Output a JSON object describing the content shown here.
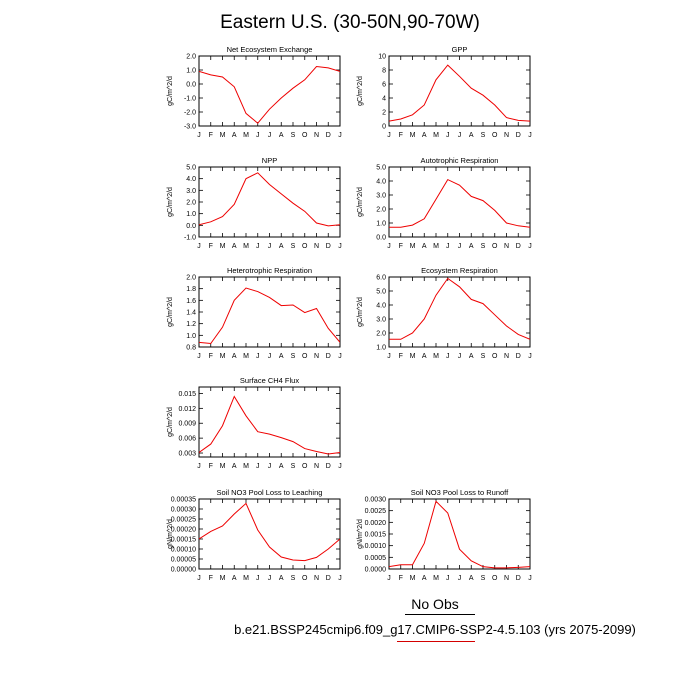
{
  "title": "Eastern U.S. (30-50N,90-70W)",
  "footer": {
    "obs_label": "No Obs",
    "case_label": "b.e21.BSSP245cmip6.f09_g17.CMIP6-SSP2-4.5.103 (yrs 2075-2099)"
  },
  "colors": {
    "series": "#ee0000",
    "axis": "#000000",
    "obs_underline": "#000000",
    "case_underline": "#d40000"
  },
  "chart_data": [
    {
      "type": "line",
      "title": "Net Ecosystem Exchange",
      "ylabel": "gC/m^2/d",
      "categories": [
        "J",
        "F",
        "M",
        "A",
        "M",
        "J",
        "J",
        "A",
        "S",
        "O",
        "N",
        "D",
        "J"
      ],
      "values": [
        0.9,
        0.65,
        0.5,
        -0.2,
        -2.1,
        -2.8,
        -1.8,
        -1.0,
        -0.3,
        0.3,
        1.25,
        1.15,
        0.9
      ],
      "ylim": [
        -3.0,
        2.0
      ],
      "yticks": [
        "-3.0",
        "-2.0",
        "-1.0",
        "0.0",
        "1.0",
        "2.0"
      ]
    },
    {
      "type": "line",
      "title": "GPP",
      "ylabel": "gC/m^2/d",
      "categories": [
        "J",
        "F",
        "M",
        "A",
        "M",
        "J",
        "J",
        "A",
        "S",
        "O",
        "N",
        "D",
        "J"
      ],
      "values": [
        0.7,
        1.0,
        1.6,
        3.0,
        6.6,
        8.7,
        7.1,
        5.4,
        4.4,
        3.0,
        1.2,
        0.8,
        0.7
      ],
      "ylim": [
        0,
        10
      ],
      "yticks": [
        "0",
        "2",
        "4",
        "6",
        "8",
        "10"
      ]
    },
    {
      "type": "line",
      "title": "NPP",
      "ylabel": "gC/m^2/d",
      "categories": [
        "J",
        "F",
        "M",
        "A",
        "M",
        "J",
        "J",
        "A",
        "S",
        "O",
        "N",
        "D",
        "J"
      ],
      "values": [
        0.05,
        0.3,
        0.75,
        1.8,
        4.0,
        4.5,
        3.5,
        2.7,
        1.9,
        1.2,
        0.2,
        -0.05,
        0.05
      ],
      "ylim": [
        -1.0,
        5.0
      ],
      "yticks": [
        "-1.0",
        "0.0",
        "1.0",
        "2.0",
        "3.0",
        "4.0",
        "5.0"
      ]
    },
    {
      "type": "line",
      "title": "Autotrophic Respiration",
      "ylabel": "gC/m^2/d",
      "categories": [
        "J",
        "F",
        "M",
        "A",
        "M",
        "J",
        "J",
        "A",
        "S",
        "O",
        "N",
        "D",
        "J"
      ],
      "values": [
        0.7,
        0.7,
        0.85,
        1.3,
        2.7,
        4.1,
        3.7,
        2.9,
        2.6,
        1.9,
        1.0,
        0.8,
        0.7
      ],
      "ylim": [
        0.0,
        5.0
      ],
      "yticks": [
        "0.0",
        "1.0",
        "2.0",
        "3.0",
        "4.0",
        "5.0"
      ]
    },
    {
      "type": "line",
      "title": "Heterotrophic Respiration",
      "ylabel": "gC/m^2/d",
      "categories": [
        "J",
        "F",
        "M",
        "A",
        "M",
        "J",
        "J",
        "A",
        "S",
        "O",
        "N",
        "D",
        "J"
      ],
      "values": [
        0.88,
        0.86,
        1.14,
        1.6,
        1.81,
        1.75,
        1.65,
        1.51,
        1.52,
        1.39,
        1.46,
        1.12,
        0.88
      ],
      "ylim": [
        0.8,
        2.0
      ],
      "yticks": [
        "0.8",
        "1.0",
        "1.2",
        "1.4",
        "1.6",
        "1.8",
        "2.0"
      ]
    },
    {
      "type": "line",
      "title": "Ecosystem Respiration",
      "ylabel": "gC/m^2/d",
      "categories": [
        "J",
        "F",
        "M",
        "A",
        "M",
        "J",
        "J",
        "A",
        "S",
        "O",
        "N",
        "D",
        "J"
      ],
      "values": [
        1.55,
        1.55,
        2.0,
        3.0,
        4.7,
        5.9,
        5.3,
        4.4,
        4.1,
        3.3,
        2.5,
        1.9,
        1.55
      ],
      "ylim": [
        1.0,
        6.0
      ],
      "yticks": [
        "1.0",
        "2.0",
        "3.0",
        "4.0",
        "5.0",
        "6.0"
      ]
    },
    {
      "type": "line",
      "title": "Surface CH4 Flux",
      "ylabel": "gC/m^2/d",
      "categories": [
        "J",
        "F",
        "M",
        "A",
        "M",
        "J",
        "J",
        "A",
        "S",
        "O",
        "N",
        "D",
        "J"
      ],
      "values": [
        0.0031,
        0.0048,
        0.0085,
        0.0144,
        0.0105,
        0.0073,
        0.0068,
        0.0061,
        0.0053,
        0.0039,
        0.0033,
        0.0028,
        0.0031
      ],
      "ylim": [
        0.0022,
        0.0163
      ],
      "yticks": [
        "0.003",
        "0.006",
        "0.009",
        "0.012",
        "0.015"
      ]
    },
    {
      "type": "line",
      "title": "Soil NO3 Pool Loss to Leaching",
      "ylabel": "gN/m^2/d",
      "categories": [
        "J",
        "F",
        "M",
        "A",
        "M",
        "J",
        "J",
        "A",
        "S",
        "O",
        "N",
        "D",
        "J"
      ],
      "values": [
        0.00015,
        0.000188,
        0.000215,
        0.000275,
        0.000328,
        0.000195,
        0.00011,
        6e-05,
        4.5e-05,
        4.2e-05,
        5.8e-05,
        0.0001,
        0.00015
      ],
      "ylim": [
        0.0,
        0.00035
      ],
      "yticks": [
        "0.00000",
        "0.00005",
        "0.00010",
        "0.00015",
        "0.00020",
        "0.00025",
        "0.00030",
        "0.00035"
      ]
    },
    {
      "type": "line",
      "title": "Soil NO3 Pool Loss to Runoff",
      "ylabel": "gN/m^2/d",
      "categories": [
        "J",
        "F",
        "M",
        "A",
        "M",
        "J",
        "J",
        "A",
        "S",
        "O",
        "N",
        "D",
        "J"
      ],
      "values": [
        0.0001,
        0.00018,
        0.00018,
        0.0011,
        0.0029,
        0.0024,
        0.00085,
        0.00035,
        0.0001,
        5e-05,
        5e-05,
        7e-05,
        0.0001
      ],
      "ylim": [
        0.0,
        0.003
      ],
      "yticks": [
        "0.0000",
        "0.0005",
        "0.0010",
        "0.0015",
        "0.0020",
        "0.0025",
        "0.0030"
      ]
    }
  ]
}
